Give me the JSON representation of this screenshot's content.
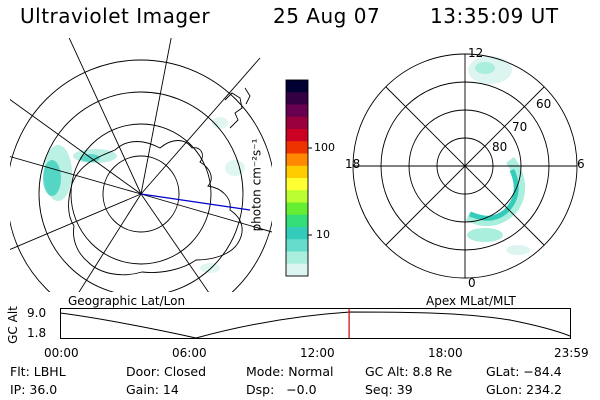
{
  "header": {
    "title": "Ultraviolet Imager",
    "date": "25 Aug 07",
    "time": "13:35:09 UT"
  },
  "geo_panel": {
    "label": "Geographic Lat/Lon"
  },
  "apex_panel": {
    "label": "Apex MLat/MLT",
    "mlt_labels": [
      "12",
      "18",
      "6",
      "0"
    ],
    "lat_labels": [
      "60",
      "70",
      "80"
    ]
  },
  "colorbar": {
    "unit_label": "photon cm⁻²s⁻¹",
    "tick_labels": [
      "100",
      "10"
    ],
    "colors": [
      "#000033",
      "#330044",
      "#66004f",
      "#99003c",
      "#cc0022",
      "#ee3300",
      "#ff8800",
      "#ffcc00",
      "#ffff33",
      "#bbff33",
      "#66ee33",
      "#33dd77",
      "#33ccbb",
      "#66ddcc",
      "#aaeedd",
      "#ddf5f0"
    ]
  },
  "altitude_strip": {
    "y_label": "GC Alt",
    "y_ticks": [
      "9.0",
      "1.8"
    ],
    "x_ticks": [
      "00:00",
      "06:00",
      "12:00",
      "18:00",
      "23:59"
    ],
    "current_time_hours": 13.586
  },
  "info": {
    "filter": "Flt: LBHL",
    "door": "Door: Closed",
    "mode": "Mode: Normal",
    "gc_alt": "GC Alt: 8.8 Re",
    "glat": "GLat: −84.4",
    "ip": "IP: 36.0",
    "gain": "Gain: 14",
    "dsp": "Dsp:   −0.0",
    "seq": "Seq: 39",
    "glon": "GLon: 234.2"
  }
}
